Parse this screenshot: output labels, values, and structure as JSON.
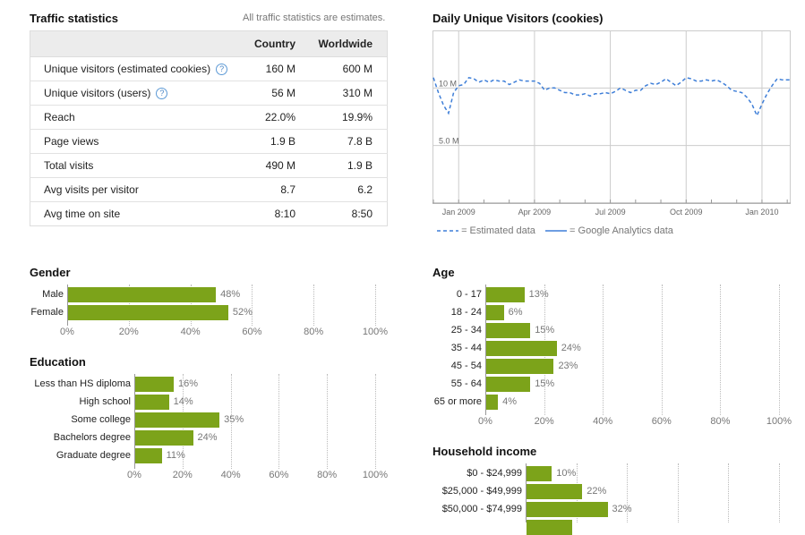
{
  "traffic": {
    "title": "Traffic statistics",
    "note": "All traffic statistics are estimates.",
    "columns": [
      "Country",
      "Worldwide"
    ],
    "rows": [
      {
        "label": "Unique visitors (estimated cookies)",
        "help": true,
        "country": "160 M",
        "worldwide": "600 M"
      },
      {
        "label": "Unique visitors (users)",
        "help": true,
        "country": "56 M",
        "worldwide": "310 M"
      },
      {
        "label": "Reach",
        "help": false,
        "country": "22.0%",
        "worldwide": "19.9%"
      },
      {
        "label": "Page views",
        "help": false,
        "country": "1.9 B",
        "worldwide": "7.8 B"
      },
      {
        "label": "Total visits",
        "help": false,
        "country": "490 M",
        "worldwide": "1.9 B"
      },
      {
        "label": "Avg visits per visitor",
        "help": false,
        "country": "8.7",
        "worldwide": "6.2"
      },
      {
        "label": "Avg time on site",
        "help": false,
        "country": "8:10",
        "worldwide": "8:50"
      }
    ],
    "help_glyph": "?"
  },
  "chart_data": [
    {
      "type": "line",
      "title": "Daily Unique Visitors (cookies)",
      "y_tick_labels": [
        "10 M",
        "5.0 M"
      ],
      "y_ticks": [
        10,
        5
      ],
      "ylim": [
        0,
        15
      ],
      "x_tick_labels": [
        "Jan 2009",
        "Apr 2009",
        "Jul 2009",
        "Oct 2009",
        "Jan 2010"
      ],
      "x_ticks": [
        1,
        4,
        7,
        10,
        13
      ],
      "xlim": [
        0,
        14.1
      ],
      "series": [
        {
          "name": "Estimated data",
          "style": "dashed",
          "color": "#3f7fd8",
          "x": [
            0.0,
            0.2,
            0.4,
            0.6,
            0.8,
            1.0,
            1.2,
            1.4,
            1.6,
            1.8,
            2.0,
            2.2,
            2.4,
            2.6,
            2.8,
            3.0,
            3.2,
            3.4,
            3.6,
            3.8,
            4.0,
            4.2,
            4.4,
            4.6,
            4.8,
            5.0,
            5.2,
            5.4,
            5.6,
            5.8,
            6.0,
            6.2,
            6.4,
            6.6,
            6.8,
            7.0,
            7.2,
            7.4,
            7.6,
            7.8,
            8.0,
            8.2,
            8.4,
            8.6,
            8.8,
            9.0,
            9.2,
            9.4,
            9.6,
            9.8,
            10.0,
            10.2,
            10.4,
            10.6,
            10.8,
            11.0,
            11.2,
            11.4,
            11.6,
            11.8,
            12.0,
            12.2,
            12.4,
            12.6,
            12.8,
            13.0,
            13.2,
            13.4,
            13.6,
            13.8,
            14.0,
            14.1
          ],
          "values": [
            10.9,
            9.6,
            8.5,
            7.8,
            9.6,
            10.2,
            10.3,
            10.9,
            10.8,
            10.5,
            10.7,
            10.5,
            10.7,
            10.6,
            10.6,
            10.3,
            10.5,
            10.7,
            10.6,
            10.6,
            10.6,
            10.4,
            9.8,
            10.0,
            10.0,
            9.8,
            9.6,
            9.6,
            9.4,
            9.4,
            9.5,
            9.3,
            9.5,
            9.5,
            9.6,
            9.5,
            9.7,
            10.0,
            9.8,
            9.6,
            9.8,
            9.8,
            10.2,
            10.4,
            10.3,
            10.5,
            10.8,
            10.5,
            10.2,
            10.5,
            10.9,
            10.8,
            10.6,
            10.6,
            10.7,
            10.6,
            10.7,
            10.5,
            10.2,
            9.8,
            9.7,
            9.6,
            9.2,
            8.6,
            7.6,
            8.6,
            9.5,
            10.2,
            10.8,
            10.7,
            10.7,
            10.7
          ]
        }
      ],
      "legend": [
        {
          "label": "= Estimated data",
          "style": "dashed"
        },
        {
          "label": "= Google Analytics data",
          "style": "solid"
        }
      ],
      "legend_position": "bottom"
    },
    {
      "type": "bar",
      "orientation": "horizontal",
      "title": "Gender",
      "categories": [
        "Male",
        "Female"
      ],
      "values": [
        48,
        52
      ],
      "value_labels": [
        "48%",
        "52%"
      ],
      "x_tick_labels": [
        "0%",
        "20%",
        "40%",
        "60%",
        "80%",
        "100%"
      ],
      "xlim": [
        0,
        100
      ]
    },
    {
      "type": "bar",
      "orientation": "horizontal",
      "title": "Education",
      "categories": [
        "Less than HS diploma",
        "High school",
        "Some college",
        "Bachelors degree",
        "Graduate degree"
      ],
      "values": [
        16,
        14,
        35,
        24,
        11
      ],
      "value_labels": [
        "16%",
        "14%",
        "35%",
        "24%",
        "11%"
      ],
      "x_tick_labels": [
        "0%",
        "20%",
        "40%",
        "60%",
        "80%",
        "100%"
      ],
      "xlim": [
        0,
        100
      ]
    },
    {
      "type": "bar",
      "orientation": "horizontal",
      "title": "Age",
      "categories": [
        "0 - 17",
        "18 - 24",
        "25 - 34",
        "35 - 44",
        "45 - 54",
        "55 - 64",
        "65 or more"
      ],
      "values": [
        13,
        6,
        15,
        24,
        23,
        15,
        4
      ],
      "value_labels": [
        "13%",
        "6%",
        "15%",
        "24%",
        "23%",
        "15%",
        "4%"
      ],
      "x_tick_labels": [
        "0%",
        "20%",
        "40%",
        "60%",
        "80%",
        "100%"
      ],
      "xlim": [
        0,
        100
      ]
    },
    {
      "type": "bar",
      "orientation": "horizontal",
      "title": "Household income",
      "categories": [
        "$0 - $24,999",
        "$25,000 - $49,999",
        "$50,000 - $74,999"
      ],
      "values": [
        10,
        22,
        32
      ],
      "value_labels": [
        "10%",
        "22%",
        "32%"
      ],
      "x_tick_labels": [],
      "xlim": [
        0,
        100
      ],
      "partial_next_bar": true
    }
  ],
  "colors": {
    "bar": "#7ca31a",
    "line": "#3f7fd8",
    "help_icon": "#5d9ad6"
  }
}
